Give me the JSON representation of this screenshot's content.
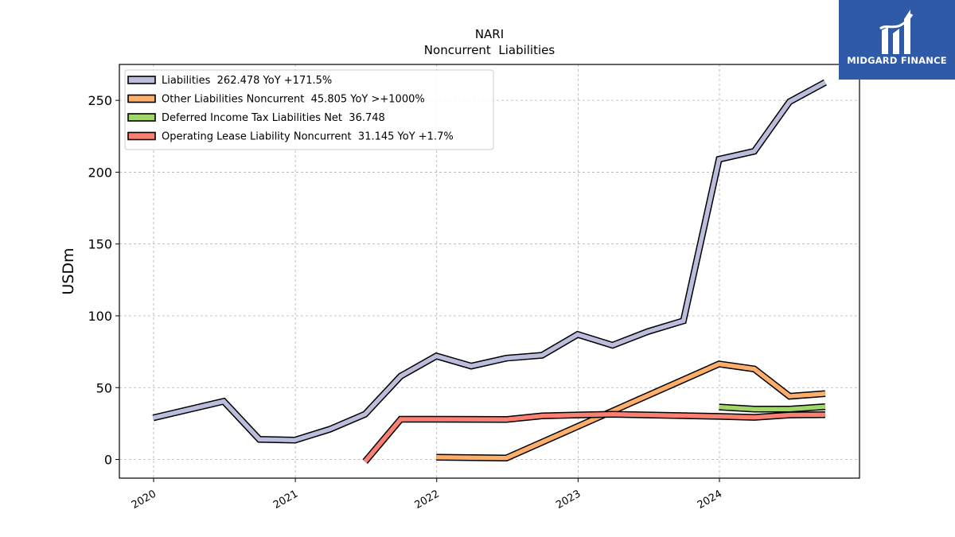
{
  "brand": {
    "name": "MIDGARD FINANCE",
    "bg_color": "#2f5aa8"
  },
  "chart_data": {
    "type": "line",
    "title": "NARI",
    "subtitle": "Noncurrent  Liabilities",
    "ylabel": "USDm",
    "xlabel": "",
    "ylim": [
      -13,
      275
    ],
    "yticks": [
      0,
      50,
      100,
      150,
      200,
      250
    ],
    "xticks": [
      "2020",
      "2021",
      "2022",
      "2023",
      "2024"
    ],
    "grid": true,
    "legend_position": "top-left",
    "series": [
      {
        "name": "Liabilities  262.478 YoY +171.5%",
        "color": "#bcbddc",
        "x": [
          "2019-12-31",
          "2020-06-30",
          "2020-09-30",
          "2020-12-31",
          "2021-03-31",
          "2021-06-30",
          "2021-09-30",
          "2021-12-31",
          "2022-03-31",
          "2022-06-30",
          "2022-09-30",
          "2022-12-31",
          "2023-03-31",
          "2023-06-30",
          "2023-09-30",
          "2023-12-31",
          "2024-03-31",
          "2024-06-30",
          "2024-09-30"
        ],
        "values": [
          29,
          40.5,
          14,
          13.5,
          21,
          31.5,
          58,
          72,
          65,
          70.5,
          72.5,
          87,
          79.5,
          89,
          96.5,
          209,
          214.5,
          249,
          262.478
        ]
      },
      {
        "name": "Other Liabilities Noncurrent  45.805 YoY >+1000%",
        "color": "#fdae6b",
        "x": [
          "2021-12-31",
          "2022-06-30",
          "2023-12-31",
          "2024-03-31",
          "2024-06-30",
          "2024-09-30"
        ],
        "values": [
          1.5,
          1,
          66.5,
          63,
          44,
          45.805
        ]
      },
      {
        "name": "Deferred Income Tax Liabilities Net  36.748",
        "color": "#a1d76a",
        "x": [
          "2023-12-31",
          "2024-03-31",
          "2024-06-30",
          "2024-09-30"
        ],
        "values": [
          36.5,
          35,
          35,
          36.748
        ]
      },
      {
        "name": "Operating Lease Liability Noncurrent  31.145 YoY +1.7%",
        "color": "#fb8072",
        "x": [
          "2021-06-30",
          "2021-09-30",
          "2021-12-31",
          "2022-06-30",
          "2022-09-30",
          "2022-12-31",
          "2023-03-31",
          "2023-12-31",
          "2024-03-31",
          "2024-06-30",
          "2024-09-30"
        ],
        "values": [
          -1.5,
          28,
          28,
          27.8,
          30.3,
          31,
          31.5,
          30,
          29.3,
          31,
          31.145
        ]
      }
    ]
  }
}
